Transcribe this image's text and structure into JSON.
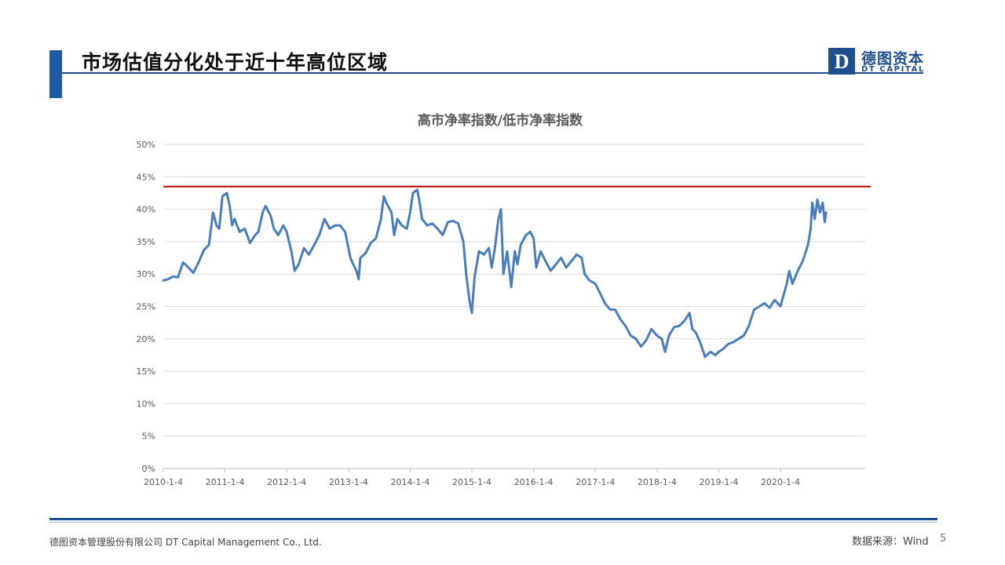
{
  "header": {
    "title": "市场估值分化处于近十年高位区域"
  },
  "logo": {
    "cn_name": "德图资本",
    "en_name": "DT CAPITAL",
    "mark_letter": "D"
  },
  "footer": {
    "company": "德图资本管理股份有限公司  DT Capital Management  Co., Ltd.",
    "source": "数据来源：Wind",
    "page_number": "5"
  },
  "colors": {
    "accent": "#1f5aa6",
    "series": "#4a7eba",
    "reference_line": "#c00000"
  },
  "chart_data": {
    "type": "line",
    "title": "高市净率指数/低市净率指数",
    "xlabel": "",
    "ylabel": "",
    "y_range": [
      0,
      0.5
    ],
    "y_ticks": [
      "0%",
      "5%",
      "10%",
      "15%",
      "20%",
      "25%",
      "30%",
      "35%",
      "40%",
      "45%",
      "50%"
    ],
    "x_range": [
      "2010-01-04",
      "2020-09-30"
    ],
    "x_ticks": [
      "2010-1-4",
      "2011-1-4",
      "2012-1-4",
      "2013-1-4",
      "2014-1-4",
      "2015-1-4",
      "2016-1-4",
      "2017-1-4",
      "2018-1-4",
      "2019-1-4",
      "2020-1-4"
    ],
    "grid": true,
    "legend": "none",
    "reference_line": 0.435,
    "series": [
      {
        "name": "",
        "points": [
          [
            "2010-01-04",
            0.29
          ],
          [
            "2010-02-01",
            0.292
          ],
          [
            "2010-03-01",
            0.296
          ],
          [
            "2010-04-01",
            0.295
          ],
          [
            "2010-05-01",
            0.318
          ],
          [
            "2010-06-01",
            0.31
          ],
          [
            "2010-07-01",
            0.302
          ],
          [
            "2010-08-01",
            0.318
          ],
          [
            "2010-09-01",
            0.337
          ],
          [
            "2010-10-01",
            0.345
          ],
          [
            "2010-10-25",
            0.395
          ],
          [
            "2010-11-15",
            0.375
          ],
          [
            "2010-12-01",
            0.37
          ],
          [
            "2010-12-20",
            0.42
          ],
          [
            "2011-01-15",
            0.425
          ],
          [
            "2011-02-01",
            0.405
          ],
          [
            "2011-02-15",
            0.375
          ],
          [
            "2011-03-01",
            0.385
          ],
          [
            "2011-04-01",
            0.365
          ],
          [
            "2011-05-01",
            0.37
          ],
          [
            "2011-06-01",
            0.348
          ],
          [
            "2011-07-01",
            0.36
          ],
          [
            "2011-07-20",
            0.365
          ],
          [
            "2011-08-15",
            0.395
          ],
          [
            "2011-09-01",
            0.405
          ],
          [
            "2011-10-01",
            0.39
          ],
          [
            "2011-10-20",
            0.37
          ],
          [
            "2011-11-15",
            0.36
          ],
          [
            "2011-12-15",
            0.375
          ],
          [
            "2012-01-04",
            0.365
          ],
          [
            "2012-02-01",
            0.335
          ],
          [
            "2012-02-20",
            0.305
          ],
          [
            "2012-03-15",
            0.315
          ],
          [
            "2012-04-15",
            0.34
          ],
          [
            "2012-05-15",
            0.33
          ],
          [
            "2012-06-15",
            0.345
          ],
          [
            "2012-07-15",
            0.36
          ],
          [
            "2012-08-15",
            0.385
          ],
          [
            "2012-09-15",
            0.37
          ],
          [
            "2012-10-15",
            0.375
          ],
          [
            "2012-11-15",
            0.375
          ],
          [
            "2012-12-15",
            0.365
          ],
          [
            "2013-01-15",
            0.325
          ],
          [
            "2013-02-01",
            0.315
          ],
          [
            "2013-02-20",
            0.305
          ],
          [
            "2013-03-05",
            0.292
          ],
          [
            "2013-03-15",
            0.325
          ],
          [
            "2013-04-15",
            0.332
          ],
          [
            "2013-05-15",
            0.348
          ],
          [
            "2013-06-15",
            0.355
          ],
          [
            "2013-07-15",
            0.385
          ],
          [
            "2013-08-01",
            0.42
          ],
          [
            "2013-08-15",
            0.41
          ],
          [
            "2013-09-15",
            0.395
          ],
          [
            "2013-10-01",
            0.36
          ],
          [
            "2013-10-20",
            0.385
          ],
          [
            "2013-11-15",
            0.375
          ],
          [
            "2013-12-15",
            0.37
          ],
          [
            "2014-01-04",
            0.395
          ],
          [
            "2014-01-20",
            0.425
          ],
          [
            "2014-02-15",
            0.43
          ],
          [
            "2014-03-01",
            0.41
          ],
          [
            "2014-03-15",
            0.385
          ],
          [
            "2014-04-15",
            0.375
          ],
          [
            "2014-05-15",
            0.378
          ],
          [
            "2014-06-15",
            0.37
          ],
          [
            "2014-07-15",
            0.36
          ],
          [
            "2014-08-15",
            0.38
          ],
          [
            "2014-09-15",
            0.382
          ],
          [
            "2014-10-15",
            0.378
          ],
          [
            "2014-11-15",
            0.35
          ],
          [
            "2014-12-01",
            0.3
          ],
          [
            "2014-12-20",
            0.26
          ],
          [
            "2015-01-04",
            0.24
          ],
          [
            "2015-01-20",
            0.295
          ],
          [
            "2015-02-15",
            0.335
          ],
          [
            "2015-03-15",
            0.33
          ],
          [
            "2015-04-15",
            0.34
          ],
          [
            "2015-05-01",
            0.31
          ],
          [
            "2015-05-20",
            0.34
          ],
          [
            "2015-06-10",
            0.385
          ],
          [
            "2015-06-25",
            0.4
          ],
          [
            "2015-07-10",
            0.3
          ],
          [
            "2015-08-01",
            0.335
          ],
          [
            "2015-08-25",
            0.28
          ],
          [
            "2015-09-15",
            0.335
          ],
          [
            "2015-10-01",
            0.315
          ],
          [
            "2015-10-20",
            0.345
          ],
          [
            "2015-11-20",
            0.36
          ],
          [
            "2015-12-15",
            0.365
          ],
          [
            "2016-01-04",
            0.355
          ],
          [
            "2016-01-20",
            0.31
          ],
          [
            "2016-02-15",
            0.335
          ],
          [
            "2016-03-15",
            0.32
          ],
          [
            "2016-04-15",
            0.305
          ],
          [
            "2016-05-15",
            0.315
          ],
          [
            "2016-06-15",
            0.325
          ],
          [
            "2016-07-15",
            0.31
          ],
          [
            "2016-08-15",
            0.32
          ],
          [
            "2016-09-15",
            0.33
          ],
          [
            "2016-10-15",
            0.325
          ],
          [
            "2016-11-01",
            0.3
          ],
          [
            "2016-12-01",
            0.29
          ],
          [
            "2017-01-04",
            0.285
          ],
          [
            "2017-02-01",
            0.27
          ],
          [
            "2017-03-01",
            0.255
          ],
          [
            "2017-04-01",
            0.245
          ],
          [
            "2017-05-01",
            0.245
          ],
          [
            "2017-06-01",
            0.23
          ],
          [
            "2017-07-01",
            0.22
          ],
          [
            "2017-08-01",
            0.205
          ],
          [
            "2017-09-01",
            0.2
          ],
          [
            "2017-10-01",
            0.188
          ],
          [
            "2017-11-01",
            0.198
          ],
          [
            "2017-12-01",
            0.215
          ],
          [
            "2018-01-04",
            0.205
          ],
          [
            "2018-02-01",
            0.2
          ],
          [
            "2018-02-20",
            0.18
          ],
          [
            "2018-03-15",
            0.205
          ],
          [
            "2018-04-15",
            0.218
          ],
          [
            "2018-05-15",
            0.22
          ],
          [
            "2018-06-15",
            0.228
          ],
          [
            "2018-07-15",
            0.24
          ],
          [
            "2018-08-01",
            0.215
          ],
          [
            "2018-08-20",
            0.21
          ],
          [
            "2018-09-15",
            0.195
          ],
          [
            "2018-10-15",
            0.172
          ],
          [
            "2018-11-15",
            0.18
          ],
          [
            "2018-12-15",
            0.175
          ],
          [
            "2019-01-04",
            0.18
          ],
          [
            "2019-02-01",
            0.185
          ],
          [
            "2019-03-01",
            0.192
          ],
          [
            "2019-04-01",
            0.195
          ],
          [
            "2019-05-01",
            0.2
          ],
          [
            "2019-06-01",
            0.205
          ],
          [
            "2019-07-01",
            0.22
          ],
          [
            "2019-08-01",
            0.245
          ],
          [
            "2019-09-01",
            0.25
          ],
          [
            "2019-10-01",
            0.255
          ],
          [
            "2019-11-01",
            0.248
          ],
          [
            "2019-12-01",
            0.26
          ],
          [
            "2020-01-04",
            0.25
          ],
          [
            "2020-01-20",
            0.265
          ],
          [
            "2020-02-10",
            0.285
          ],
          [
            "2020-02-25",
            0.305
          ],
          [
            "2020-03-15",
            0.285
          ],
          [
            "2020-04-15",
            0.305
          ],
          [
            "2020-05-15",
            0.32
          ],
          [
            "2020-06-15",
            0.345
          ],
          [
            "2020-07-01",
            0.37
          ],
          [
            "2020-07-10",
            0.41
          ],
          [
            "2020-07-25",
            0.385
          ],
          [
            "2020-08-10",
            0.415
          ],
          [
            "2020-08-25",
            0.395
          ],
          [
            "2020-09-10",
            0.41
          ],
          [
            "2020-09-22",
            0.38
          ],
          [
            "2020-09-30",
            0.395
          ]
        ]
      }
    ]
  }
}
